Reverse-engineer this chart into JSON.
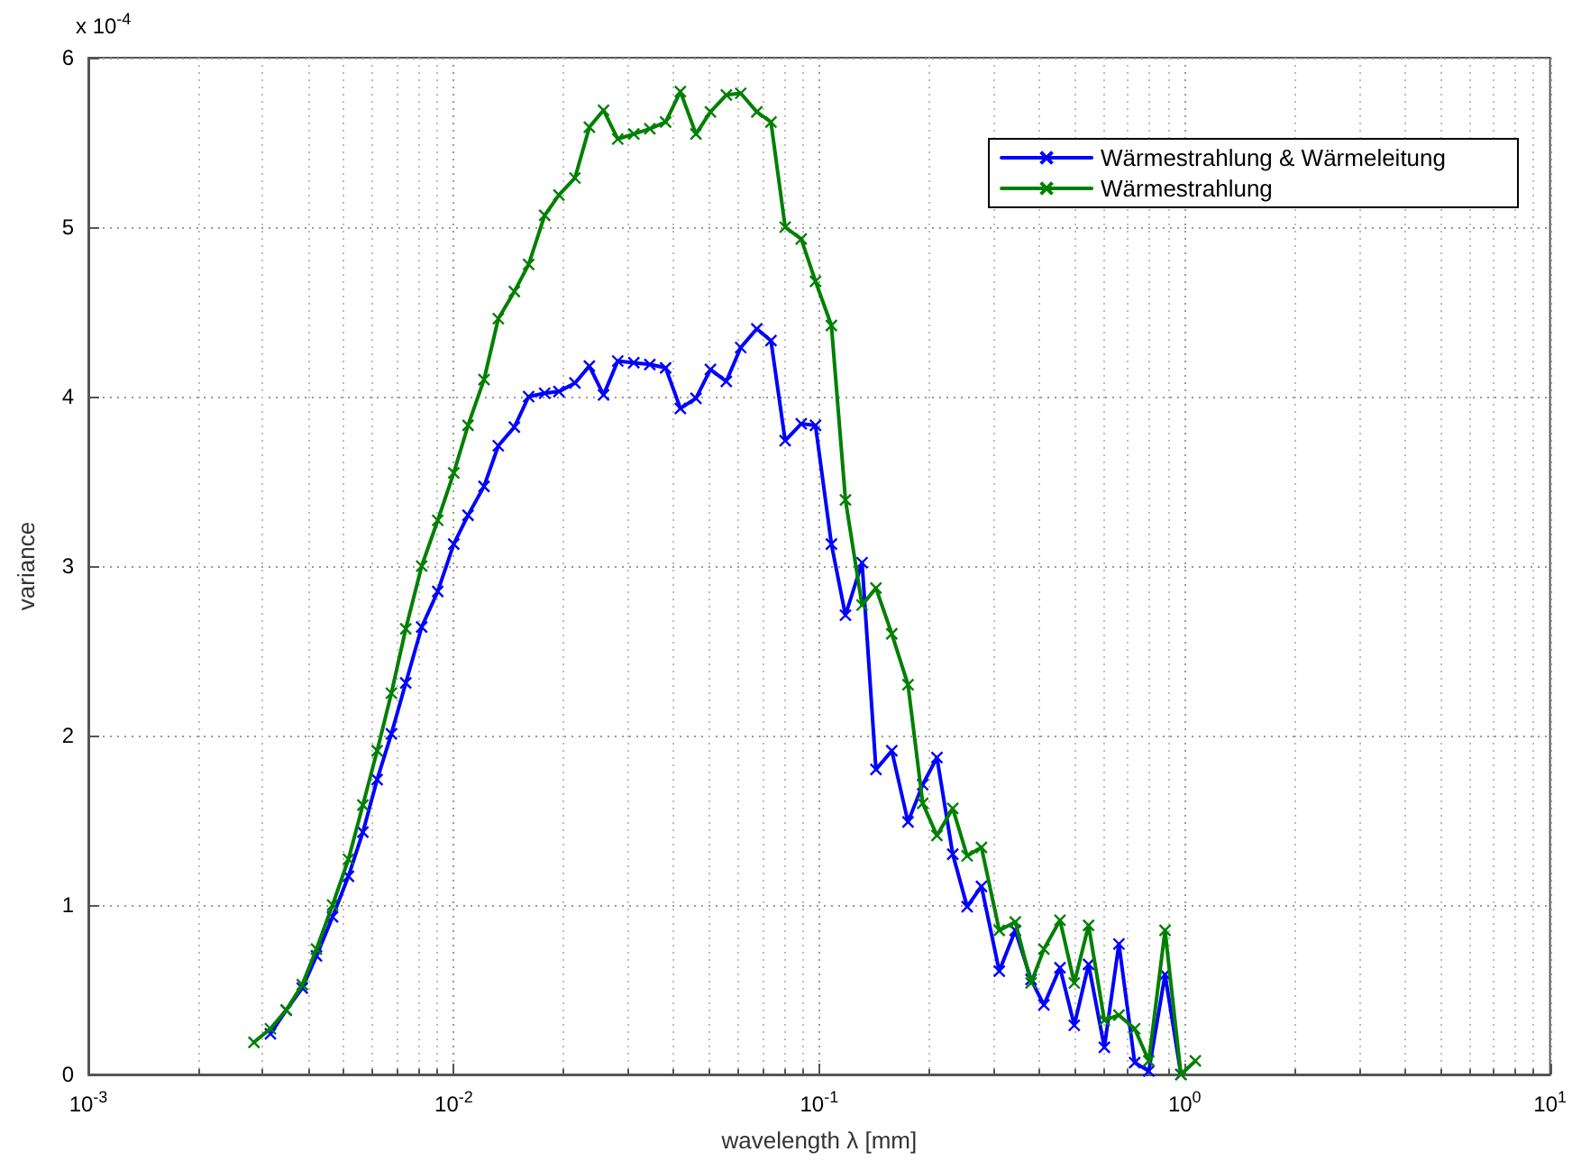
{
  "chart_data": {
    "type": "line",
    "xlabel": "wavelength λ [mm]",
    "ylabel": "variance",
    "annotations": [
      "x 10$^{-4}$"
    ],
    "x": [
      0.00284,
      0.00315,
      0.00348,
      0.00385,
      0.00421,
      0.00466,
      0.00515,
      0.00564,
      0.00617,
      0.00675,
      0.00739,
      0.00817,
      0.00904,
      0.01,
      0.01094,
      0.0121,
      0.01324,
      0.01465,
      0.01603,
      0.01773,
      0.0194,
      0.02146,
      0.0235,
      0.0257,
      0.0281,
      0.0311,
      0.0344,
      0.038,
      0.0417,
      0.046,
      0.0504,
      0.0557,
      0.061,
      0.0675,
      0.0738,
      0.0807,
      0.0893,
      0.0977,
      0.108,
      0.118,
      0.131,
      0.143,
      0.158,
      0.175,
      0.192,
      0.21,
      0.232,
      0.254,
      0.278,
      0.311,
      0.344,
      0.38,
      0.412,
      0.456,
      0.499,
      0.546,
      0.603,
      0.661,
      0.73,
      0.798,
      0.884,
      0.977,
      1.07
    ],
    "series": [
      {
        "name": "Wärmestrahlung & Wärmeleitung",
        "color": "#0000ff",
        "values": [
          null,
          0.24,
          0.38,
          0.51,
          0.7,
          0.93,
          1.17,
          1.43,
          1.74,
          2.01,
          2.31,
          2.64,
          2.85,
          3.13,
          3.3,
          3.47,
          3.71,
          3.82,
          4.0,
          4.02,
          4.03,
          4.08,
          4.18,
          4.01,
          4.21,
          4.2,
          4.19,
          4.17,
          3.93,
          3.99,
          4.16,
          4.09,
          4.29,
          4.4,
          4.33,
          3.74,
          3.84,
          3.83,
          3.13,
          2.71,
          3.02,
          1.8,
          1.91,
          1.49,
          1.71,
          1.87,
          1.3,
          0.99,
          1.11,
          0.61,
          0.85,
          0.56,
          0.41,
          0.63,
          0.29,
          0.65,
          0.16,
          0.77,
          0.07,
          0.02,
          0.59,
          0,
          null
        ]
      },
      {
        "name": "Wärmestrahlung",
        "color": "#008000",
        "values": [
          0.19,
          0.27,
          0.38,
          0.53,
          0.74,
          1.0,
          1.27,
          1.59,
          1.91,
          2.25,
          2.63,
          3.0,
          3.27,
          3.55,
          3.83,
          4.1,
          4.46,
          4.62,
          4.78,
          5.07,
          5.19,
          5.29,
          5.59,
          5.69,
          5.52,
          5.55,
          5.58,
          5.62,
          5.8,
          5.55,
          5.68,
          5.78,
          5.79,
          5.68,
          5.62,
          5.0,
          4.93,
          4.68,
          4.42,
          3.39,
          2.77,
          2.87,
          2.6,
          2.3,
          1.6,
          1.41,
          1.57,
          1.29,
          1.34,
          0.85,
          0.9,
          0.54,
          0.74,
          0.91,
          0.54,
          0.88,
          0.32,
          0.35,
          0.27,
          0.08,
          0.85,
          0,
          0.08
        ]
      }
    ],
    "log": "x",
    "xlim": [
      0.001,
      10
    ],
    "xticks": [
      {
        "value": 0.001,
        "label": "10$^{-3}$"
      },
      {
        "value": 0.01,
        "label": "10$^{-2}$"
      },
      {
        "value": 0.1,
        "label": "10$^{-1}$"
      },
      {
        "value": 1,
        "label": "10$^{0}$"
      },
      {
        "value": 10,
        "label": "10$^{1}$"
      }
    ],
    "ylim": [
      0,
      6
    ],
    "yticks": [
      0,
      1,
      2,
      3,
      4,
      5,
      6
    ],
    "grid": true,
    "legend": "top right",
    "marker": "cross",
    "line_style": "solid"
  }
}
